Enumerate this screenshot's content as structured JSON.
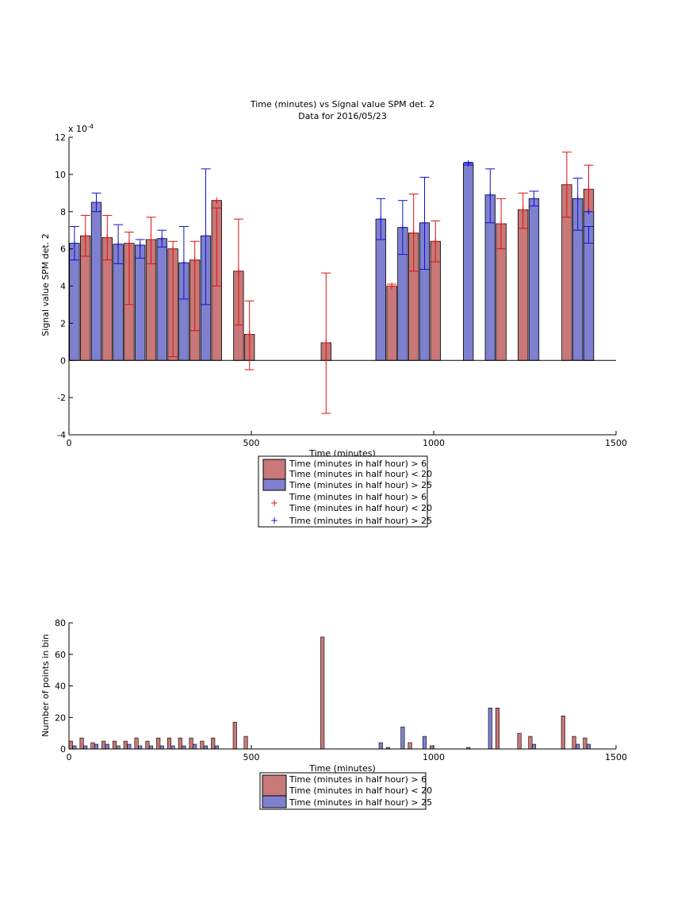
{
  "colors": {
    "red_fill": "#c87878",
    "blue_fill": "#8080d0",
    "red_err": "#dd1111",
    "blue_err": "#1111cc"
  },
  "chart_data": [
    {
      "type": "bar",
      "title": "Time (minutes) vs Signal value SPM det. 2",
      "subtitle": "Data for 2016/05/23",
      "xlabel": "Time (minutes)",
      "ylabel": "Signal value SPM det. 2",
      "y_exponent": "x 10",
      "y_exponent_power": "-4",
      "xlim": [
        0,
        1500
      ],
      "ylim": [
        -4,
        12
      ],
      "xticks": [
        "0",
        "500",
        "1000",
        "1500"
      ],
      "yticks": [
        "-4",
        "-2",
        "0",
        "2",
        "4",
        "6",
        "8",
        "10",
        "12"
      ],
      "legend": [
        "Time (minutes in half hour) > 6",
        "Time (minutes in half hour) < 20",
        "Time (minutes in half hour) > 25",
        "Time (minutes in half hour) > 6",
        "Time (minutes in half hour) < 20",
        "Time (minutes in half hour) > 25"
      ],
      "legend_position": "below",
      "series": [
        {
          "name": "Time (minutes in half hour) > 6 / < 20",
          "color": "red",
          "points": [
            {
              "x": 45,
              "y": 6.7,
              "lo": 5.6,
              "hi": 7.8
            },
            {
              "x": 105,
              "y": 6.6,
              "lo": 5.4,
              "hi": 7.8
            },
            {
              "x": 165,
              "y": 6.3,
              "lo": 3.0,
              "hi": 6.9
            },
            {
              "x": 225,
              "y": 6.5,
              "lo": 5.2,
              "hi": 7.7
            },
            {
              "x": 285,
              "y": 6.0,
              "lo": 0.2,
              "hi": 6.4
            },
            {
              "x": 345,
              "y": 5.4,
              "lo": 1.6,
              "hi": 6.4
            },
            {
              "x": 405,
              "y": 8.6,
              "lo": 4.0,
              "hi": 8.2
            },
            {
              "x": 465,
              "y": 4.8,
              "lo": 1.9,
              "hi": 7.6
            },
            {
              "x": 495,
              "y": 1.4,
              "lo": -0.5,
              "hi": 3.2
            },
            {
              "x": 705,
              "y": 0.95,
              "lo": -2.85,
              "hi": 4.7
            },
            {
              "x": 885,
              "y": 4.0,
              "lo": 4.0,
              "hi": 4.1
            },
            {
              "x": 945,
              "y": 6.85,
              "lo": 4.8,
              "hi": 8.95
            },
            {
              "x": 1005,
              "y": 6.4,
              "lo": 5.3,
              "hi": 7.5
            },
            {
              "x": 1185,
              "y": 7.35,
              "lo": 6.0,
              "hi": 8.7
            },
            {
              "x": 1245,
              "y": 8.1,
              "lo": 7.1,
              "hi": 9.0
            },
            {
              "x": 1365,
              "y": 9.45,
              "lo": 7.7,
              "hi": 11.2
            },
            {
              "x": 1425,
              "y": 9.2,
              "lo": 8.0,
              "hi": 10.5
            }
          ]
        },
        {
          "name": "Time (minutes in half hour) > 25",
          "color": "blue",
          "points": [
            {
              "x": 15,
              "y": 6.3,
              "lo": 5.4,
              "hi": 7.2
            },
            {
              "x": 75,
              "y": 8.5,
              "lo": 8.0,
              "hi": 9.0
            },
            {
              "x": 135,
              "y": 6.25,
              "lo": 5.2,
              "hi": 7.3
            },
            {
              "x": 195,
              "y": 6.2,
              "lo": 5.5,
              "hi": 6.5
            },
            {
              "x": 255,
              "y": 6.55,
              "lo": 6.1,
              "hi": 7.0
            },
            {
              "x": 315,
              "y": 5.25,
              "lo": 3.3,
              "hi": 7.2
            },
            {
              "x": 375,
              "y": 6.7,
              "lo": 3.0,
              "hi": 10.3
            },
            {
              "x": 855,
              "y": 7.6,
              "lo": 6.5,
              "hi": 8.7
            },
            {
              "x": 915,
              "y": 7.15,
              "lo": 5.7,
              "hi": 8.6
            },
            {
              "x": 975,
              "y": 7.4,
              "lo": 4.9,
              "hi": 9.85
            },
            {
              "x": 1095,
              "y": 10.6,
              "lo": 10.5,
              "hi": 10.65
            },
            {
              "x": 1155,
              "y": 8.9,
              "lo": 7.4,
              "hi": 10.3
            },
            {
              "x": 1275,
              "y": 8.7,
              "lo": 8.3,
              "hi": 9.1
            },
            {
              "x": 1395,
              "y": 8.7,
              "lo": 7.0,
              "hi": 9.8
            },
            {
              "x": 1425,
              "y": 8.0,
              "lo": 6.3,
              "hi": 7.2
            }
          ]
        }
      ]
    },
    {
      "type": "bar",
      "xlabel": "Time (minutes)",
      "ylabel": "Number of points in bin",
      "xlim": [
        0,
        1500
      ],
      "ylim": [
        0,
        80
      ],
      "xticks": [
        "0",
        "500",
        "1000",
        "1500"
      ],
      "yticks": [
        "0",
        "20",
        "40",
        "60",
        "80"
      ],
      "legend": [
        "Time (minutes in half hour) > 6",
        "Time (minutes in half hour) < 20",
        "Time (minutes in half hour) > 25"
      ],
      "legend_position": "below",
      "series": [
        {
          "name": "Time (minutes in half hour) > 6 / < 20",
          "color": "red",
          "points": [
            {
              "x": 5,
              "y": 5
            },
            {
              "x": 35,
              "y": 7
            },
            {
              "x": 65,
              "y": 4
            },
            {
              "x": 95,
              "y": 5
            },
            {
              "x": 125,
              "y": 5
            },
            {
              "x": 155,
              "y": 5
            },
            {
              "x": 185,
              "y": 7
            },
            {
              "x": 215,
              "y": 5
            },
            {
              "x": 245,
              "y": 7
            },
            {
              "x": 275,
              "y": 7
            },
            {
              "x": 305,
              "y": 7
            },
            {
              "x": 335,
              "y": 7
            },
            {
              "x": 365,
              "y": 5
            },
            {
              "x": 395,
              "y": 7
            },
            {
              "x": 455,
              "y": 17
            },
            {
              "x": 485,
              "y": 8
            },
            {
              "x": 695,
              "y": 71
            },
            {
              "x": 875,
              "y": 1
            },
            {
              "x": 935,
              "y": 4
            },
            {
              "x": 995,
              "y": 2
            },
            {
              "x": 1175,
              "y": 26
            },
            {
              "x": 1235,
              "y": 10
            },
            {
              "x": 1265,
              "y": 8
            },
            {
              "x": 1355,
              "y": 21
            },
            {
              "x": 1385,
              "y": 8
            },
            {
              "x": 1415,
              "y": 7
            }
          ]
        },
        {
          "name": "Time (minutes in half hour) > 25",
          "color": "blue",
          "points": [
            {
              "x": 15,
              "y": 2
            },
            {
              "x": 45,
              "y": 2
            },
            {
              "x": 75,
              "y": 3
            },
            {
              "x": 105,
              "y": 3
            },
            {
              "x": 135,
              "y": 2
            },
            {
              "x": 165,
              "y": 3
            },
            {
              "x": 195,
              "y": 2
            },
            {
              "x": 225,
              "y": 2
            },
            {
              "x": 255,
              "y": 2
            },
            {
              "x": 285,
              "y": 2
            },
            {
              "x": 315,
              "y": 2
            },
            {
              "x": 345,
              "y": 3
            },
            {
              "x": 375,
              "y": 2
            },
            {
              "x": 405,
              "y": 2
            },
            {
              "x": 855,
              "y": 4
            },
            {
              "x": 915,
              "y": 14
            },
            {
              "x": 975,
              "y": 8
            },
            {
              "x": 1095,
              "y": 1
            },
            {
              "x": 1155,
              "y": 26
            },
            {
              "x": 1275,
              "y": 3
            },
            {
              "x": 1395,
              "y": 3
            },
            {
              "x": 1425,
              "y": 3
            }
          ]
        }
      ]
    }
  ]
}
